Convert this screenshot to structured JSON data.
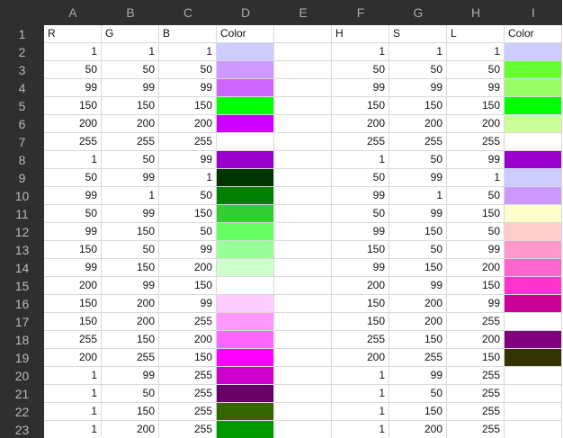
{
  "columns": [
    "A",
    "B",
    "C",
    "D",
    "E",
    "F",
    "G",
    "H",
    "I"
  ],
  "row_numbers": [
    "1",
    "2",
    "3",
    "4",
    "5",
    "6",
    "7",
    "8",
    "9",
    "10",
    "11",
    "12",
    "13",
    "14",
    "15",
    "16",
    "17",
    "18",
    "19",
    "20",
    "21",
    "22",
    "23"
  ],
  "header_row": {
    "A": "R",
    "B": "G",
    "C": "B",
    "D": "Color",
    "E": "",
    "F": "H",
    "G": "S",
    "H": "L",
    "I": "Color"
  },
  "rows": [
    {
      "r": "1",
      "g": "1",
      "b": "1",
      "color1": "#ccccff",
      "h": "1",
      "s": "1",
      "l": "1",
      "color2": "#ccccff"
    },
    {
      "r": "50",
      "g": "50",
      "b": "50",
      "color1": "#cc99ff",
      "h": "50",
      "s": "50",
      "l": "50",
      "color2": "#66ff33"
    },
    {
      "r": "99",
      "g": "99",
      "b": "99",
      "color1": "#cc66ff",
      "h": "99",
      "s": "99",
      "l": "99",
      "color2": "#99ff66"
    },
    {
      "r": "150",
      "g": "150",
      "b": "150",
      "color1": "#00ff00",
      "h": "150",
      "s": "150",
      "l": "150",
      "color2": "#00ff00"
    },
    {
      "r": "200",
      "g": "200",
      "b": "200",
      "color1": "#cc00ff",
      "h": "200",
      "s": "200",
      "l": "200",
      "color2": "#ccff99"
    },
    {
      "r": "255",
      "g": "255",
      "b": "255",
      "color1": "#ffffff",
      "h": "255",
      "s": "255",
      "l": "255",
      "color2": "#ffffff"
    },
    {
      "r": "1",
      "g": "50",
      "b": "99",
      "color1": "#9900cc",
      "h": "1",
      "s": "50",
      "l": "99",
      "color2": "#9900cc"
    },
    {
      "r": "50",
      "g": "99",
      "b": "1",
      "color1": "#003300",
      "h": "50",
      "s": "99",
      "l": "1",
      "color2": "#ccccff"
    },
    {
      "r": "99",
      "g": "1",
      "b": "50",
      "color1": "#008000",
      "h": "99",
      "s": "1",
      "l": "50",
      "color2": "#cc99ff"
    },
    {
      "r": "50",
      "g": "99",
      "b": "150",
      "color1": "#33cc33",
      "h": "50",
      "s": "99",
      "l": "150",
      "color2": "#ffffcc"
    },
    {
      "r": "99",
      "g": "150",
      "b": "50",
      "color1": "#66ff66",
      "h": "99",
      "s": "150",
      "l": "50",
      "color2": "#ffcccc"
    },
    {
      "r": "150",
      "g": "50",
      "b": "99",
      "color1": "#99ff99",
      "h": "150",
      "s": "50",
      "l": "99",
      "color2": "#ff99cc"
    },
    {
      "r": "99",
      "g": "150",
      "b": "200",
      "color1": "#ccffcc",
      "h": "99",
      "s": "150",
      "l": "200",
      "color2": "#ff66cc"
    },
    {
      "r": "200",
      "g": "99",
      "b": "150",
      "color1": "#ffffff",
      "h": "200",
      "s": "99",
      "l": "150",
      "color2": "#ff33cc"
    },
    {
      "r": "150",
      "g": "200",
      "b": "99",
      "color1": "#ffccff",
      "h": "150",
      "s": "200",
      "l": "99",
      "color2": "#cc0099"
    },
    {
      "r": "150",
      "g": "200",
      "b": "255",
      "color1": "#ff99ff",
      "h": "150",
      "s": "200",
      "l": "255",
      "color2": "#ffffff"
    },
    {
      "r": "255",
      "g": "150",
      "b": "200",
      "color1": "#ff66ff",
      "h": "255",
      "s": "150",
      "l": "200",
      "color2": "#800080"
    },
    {
      "r": "200",
      "g": "255",
      "b": "150",
      "color1": "#ff00ff",
      "h": "200",
      "s": "255",
      "l": "150",
      "color2": "#333300"
    },
    {
      "r": "1",
      "g": "99",
      "b": "255",
      "color1": "#cc00cc",
      "h": "1",
      "s": "99",
      "l": "255",
      "color2": "#ffffff"
    },
    {
      "r": "1",
      "g": "50",
      "b": "255",
      "color1": "#660066",
      "h": "1",
      "s": "50",
      "l": "255",
      "color2": "#ffffff"
    },
    {
      "r": "1",
      "g": "150",
      "b": "255",
      "color1": "#336600",
      "h": "1",
      "s": "150",
      "l": "255",
      "color2": "#ffffff"
    },
    {
      "r": "1",
      "g": "200",
      "b": "255",
      "color1": "#009900",
      "h": "1",
      "s": "200",
      "l": "255",
      "color2": "#ffffff"
    }
  ],
  "colors": {
    "header_bg": "#2f2f2f",
    "header_text": "#a9a9a9",
    "gridline": "#d9d9d9"
  }
}
